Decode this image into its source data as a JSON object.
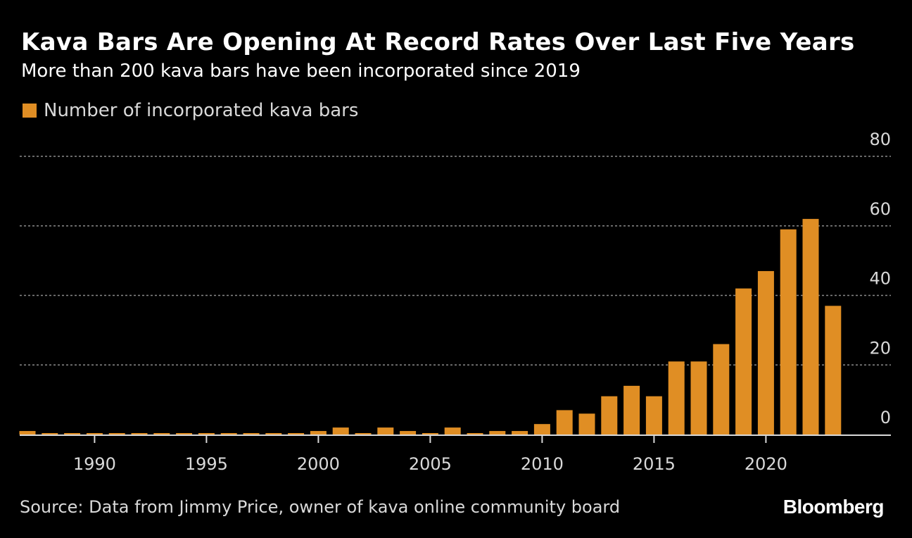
{
  "colors": {
    "bar": "#e08e24",
    "grid": "#8a8a8a",
    "axis": "#d9d9d9",
    "text": "#d9d9d9"
  },
  "brand": "Bloomberg",
  "chart_data": {
    "type": "bar",
    "title": "Kava Bars Are Opening At Record Rates Over Last Five Years",
    "subtitle": "More than 200 kava bars have been incorporated since 2019",
    "legend": [
      "Number of incorporated kava bars"
    ],
    "source": "Source: Data from Jimmy Price, owner of kava online community board",
    "xlabel": "",
    "ylabel": "",
    "ylim": [
      0,
      80
    ],
    "yticks": [
      0,
      20,
      40,
      60,
      80
    ],
    "xticks": [
      1990,
      1995,
      2000,
      2005,
      2010,
      2015,
      2020
    ],
    "grid": true,
    "x": [
      1987,
      1988,
      1989,
      1990,
      1991,
      1992,
      1993,
      1994,
      1995,
      1996,
      1997,
      1998,
      1999,
      2000,
      2001,
      2002,
      2003,
      2004,
      2005,
      2006,
      2007,
      2008,
      2009,
      2010,
      2011,
      2012,
      2013,
      2014,
      2015,
      2016,
      2017,
      2018,
      2019,
      2020,
      2021,
      2022,
      2023
    ],
    "values": [
      1,
      0,
      0,
      0,
      0,
      0,
      0,
      0,
      0,
      0,
      0,
      0,
      0,
      1,
      2,
      0,
      2,
      1,
      0,
      2,
      0,
      1,
      1,
      3,
      7,
      6,
      11,
      14,
      11,
      21,
      21,
      26,
      42,
      47,
      59,
      62,
      37
    ]
  }
}
